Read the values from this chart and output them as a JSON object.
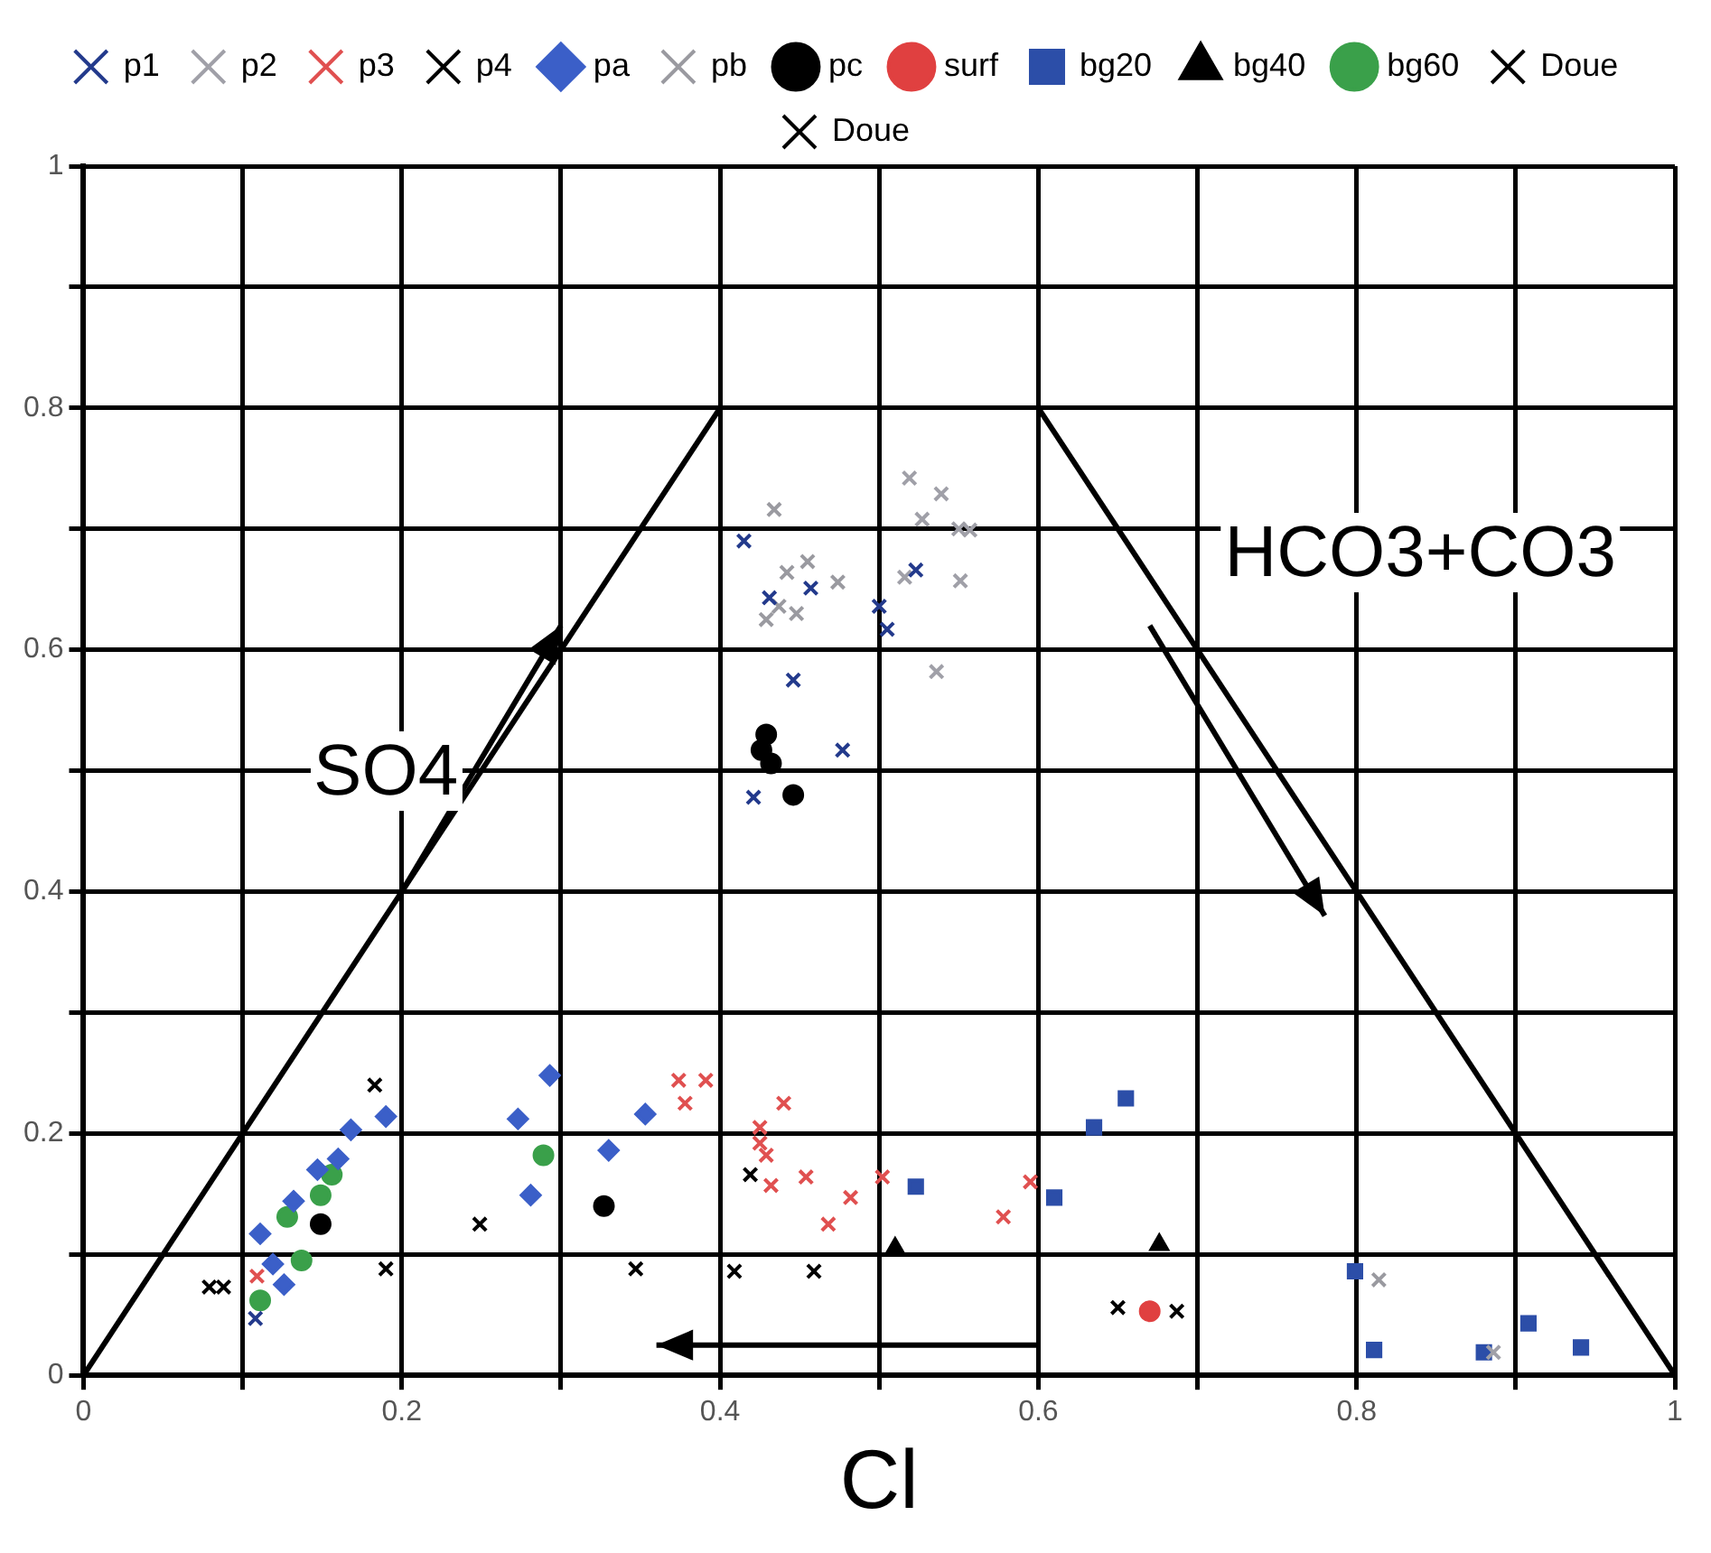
{
  "chart_data": {
    "type": "scatter",
    "xlabel": "Cl",
    "xlim": [
      0,
      1
    ],
    "ylim": [
      0,
      1
    ],
    "xticks": [
      0,
      {
        "value": 0.1,
        "label": null
      },
      0.2,
      {
        "value": 0.3,
        "label": null
      },
      0.4,
      {
        "value": 0.5,
        "label": null
      },
      0.6,
      {
        "value": 0.7,
        "label": null
      },
      0.8,
      {
        "value": 0.9,
        "label": null
      },
      1
    ],
    "yticks": [
      0,
      {
        "value": 0.1,
        "label": null
      },
      0.2,
      {
        "value": 0.3,
        "label": null
      },
      0.4,
      {
        "value": 0.5,
        "label": null
      },
      0.6,
      {
        "value": 0.7,
        "label": null
      },
      0.8,
      {
        "value": 0.9,
        "label": null
      },
      1
    ],
    "grid": true,
    "legend": "top",
    "annotations": [
      "SO4",
      "HCO3+CO3"
    ],
    "series": [
      {
        "name": "p1",
        "color": "#233a8c",
        "marker": "cross",
        "x": [
          0.415,
          0.431,
          0.457,
          0.5,
          0.505,
          0.446,
          0.523,
          0.477,
          0.421,
          0.108
        ],
        "values": [
          0.69,
          0.643,
          0.651,
          0.636,
          0.617,
          0.575,
          0.666,
          0.517,
          0.478,
          0.047
        ]
      },
      {
        "name": "p2",
        "color": "#a0a0a8",
        "marker": "cross",
        "x": [
          0.519,
          0.539,
          0.527,
          0.55,
          0.557,
          0.516,
          0.551,
          0.536,
          0.886
        ],
        "values": [
          0.742,
          0.729,
          0.708,
          0.7,
          0.699,
          0.66,
          0.657,
          0.582,
          0.019
        ]
      },
      {
        "name": "p3",
        "color": "#e05050",
        "marker": "cross",
        "x": [
          0.374,
          0.391,
          0.378,
          0.44,
          0.425,
          0.425,
          0.429,
          0.432,
          0.454,
          0.482,
          0.468,
          0.502,
          0.595,
          0.578,
          0.109
        ],
        "values": [
          0.244,
          0.244,
          0.225,
          0.225,
          0.205,
          0.192,
          0.182,
          0.157,
          0.164,
          0.147,
          0.125,
          0.164,
          0.16,
          0.131,
          0.082
        ]
      },
      {
        "name": "p4",
        "color": "#000000",
        "marker": "cross",
        "x": [
          0.183,
          0.249,
          0.19,
          0.347,
          0.419,
          0.079,
          0.088
        ],
        "values": [
          0.24,
          0.125,
          0.088,
          0.088,
          0.166,
          0.073,
          0.073
        ]
      },
      {
        "name": "pa",
        "color": "#3b5fc8",
        "marker": "diamond",
        "x": [
          0.19,
          0.168,
          0.293,
          0.273,
          0.353,
          0.33,
          0.281,
          0.16,
          0.147,
          0.132,
          0.111,
          0.119,
          0.126
        ],
        "values": [
          0.214,
          0.203,
          0.248,
          0.212,
          0.216,
          0.186,
          0.149,
          0.179,
          0.17,
          0.144,
          0.117,
          0.092,
          0.075
        ]
      },
      {
        "name": "pb",
        "color": "#9a9aa0",
        "marker": "cross",
        "x": [
          0.434,
          0.442,
          0.455,
          0.474,
          0.437,
          0.429,
          0.448,
          0.814
        ],
        "values": [
          0.716,
          0.664,
          0.673,
          0.656,
          0.636,
          0.625,
          0.63,
          0.079
        ]
      },
      {
        "name": "pc",
        "color": "#000000",
        "marker": "circle",
        "x": [
          0.429,
          0.426,
          0.432,
          0.446,
          0.327,
          0.149
        ],
        "values": [
          0.53,
          0.517,
          0.506,
          0.48,
          0.14,
          0.125
        ]
      },
      {
        "name": "surf",
        "color": "#e04040",
        "marker": "circle",
        "x": [
          0.67
        ],
        "values": [
          0.053
        ]
      },
      {
        "name": "bg20",
        "color": "#2c4ea8",
        "marker": "square",
        "x": [
          0.523,
          0.61,
          0.635,
          0.655,
          0.799,
          0.811,
          0.88,
          0.908,
          0.941
        ],
        "values": [
          0.156,
          0.147,
          0.205,
          0.229,
          0.086,
          0.021,
          0.019,
          0.043,
          0.023
        ]
      },
      {
        "name": "bg40",
        "color": "#000000",
        "marker": "triangle",
        "x": [
          0.51,
          0.676
        ],
        "values": [
          0.105,
          0.108
        ]
      },
      {
        "name": "bg60",
        "color": "#3aa04a",
        "marker": "circle",
        "x": [
          0.289,
          0.156,
          0.149,
          0.128,
          0.137,
          0.111
        ],
        "values": [
          0.182,
          0.166,
          0.149,
          0.131,
          0.095,
          0.062
        ]
      },
      {
        "name": "Doue",
        "color": "#000000",
        "marker": "cross",
        "x": [
          0.459,
          0.65
        ],
        "values": [
          0.086,
          0.056
        ]
      },
      {
        "name": "Doue",
        "color": "#000000",
        "marker": "cross",
        "x": [
          0.409,
          0.687
        ],
        "values": [
          0.086,
          0.053
        ]
      },
      {
        "type": "line",
        "color": "#000000",
        "x": [
          0,
          0.4
        ],
        "values": [
          0,
          0.8
        ]
      },
      {
        "type": "line",
        "color": "#000000",
        "x": [
          0.6,
          1
        ],
        "values": [
          0.8,
          0
        ]
      }
    ]
  }
}
